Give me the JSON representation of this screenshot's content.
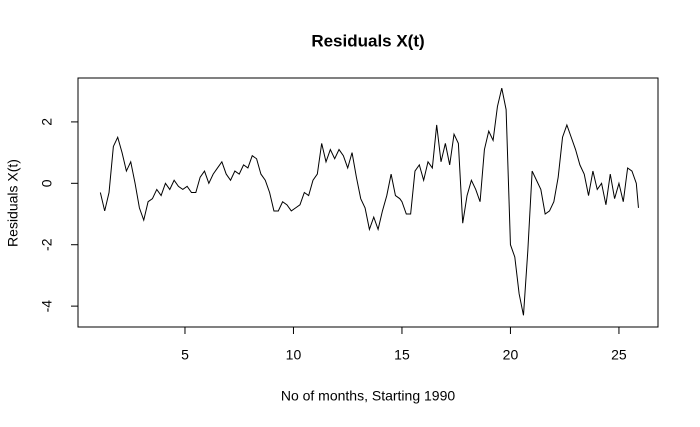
{
  "chart_data": {
    "type": "line",
    "title": "Residuals X(t)",
    "x_label": "No of months, Starting 1990",
    "y_label": "Residuals X(t)",
    "x": [
      1.1,
      1.3,
      1.5,
      1.7,
      1.9,
      2.1,
      2.3,
      2.5,
      2.7,
      2.9,
      3.1,
      3.3,
      3.5,
      3.7,
      3.9,
      4.1,
      4.3,
      4.5,
      4.7,
      4.9,
      5.1,
      5.3,
      5.5,
      5.7,
      5.9,
      6.1,
      6.3,
      6.5,
      6.7,
      6.9,
      7.1,
      7.3,
      7.5,
      7.7,
      7.9,
      8.1,
      8.3,
      8.5,
      8.7,
      8.9,
      9.1,
      9.3,
      9.5,
      9.7,
      9.9,
      10.1,
      10.3,
      10.5,
      10.7,
      10.9,
      11.1,
      11.3,
      11.5,
      11.7,
      11.9,
      12.1,
      12.3,
      12.5,
      12.7,
      12.9,
      13.1,
      13.3,
      13.5,
      13.7,
      13.9,
      14.1,
      14.3,
      14.5,
      14.7,
      14.9,
      15.0,
      15.2,
      15.4,
      15.6,
      15.8,
      16.0,
      16.2,
      16.4,
      16.6,
      16.8,
      17.0,
      17.2,
      17.4,
      17.6,
      17.8,
      18.0,
      18.2,
      18.4,
      18.6,
      18.8,
      19.0,
      19.2,
      19.4,
      19.6,
      19.8,
      20.0,
      20.2,
      20.4,
      20.6,
      20.8,
      21.0,
      21.2,
      21.4,
      21.6,
      21.8,
      22.0,
      22.2,
      22.4,
      22.6,
      22.8,
      23.0,
      23.2,
      23.4,
      23.6,
      23.8,
      24.0,
      24.2,
      24.4,
      24.6,
      24.8,
      25.0,
      25.2,
      25.4,
      25.6,
      25.8,
      25.9
    ],
    "series": [
      {
        "name": "Residuals",
        "color": "#000000",
        "values": [
          -0.3,
          -0.9,
          -0.3,
          1.2,
          1.5,
          1.0,
          0.4,
          0.7,
          0,
          -0.8,
          -1.2,
          -0.6,
          -0.5,
          -0.2,
          -0.4,
          0,
          -0.2,
          0.1,
          -0.1,
          -0.2,
          -0.1,
          -0.3,
          -0.3,
          0.2,
          0.4,
          0,
          0.3,
          0.5,
          0.7,
          0.3,
          0.1,
          0.4,
          0.3,
          0.6,
          0.5,
          0.9,
          0.8,
          0.3,
          0.1,
          -0.3,
          -0.9,
          -0.9,
          -0.6,
          -0.7,
          -0.9,
          -0.8,
          -0.7,
          -0.3,
          -0.4,
          0.1,
          0.3,
          1.3,
          0.7,
          1.1,
          0.8,
          1.1,
          0.9,
          0.5,
          1.0,
          0.2,
          -0.5,
          -0.8,
          -1.5,
          -1.1,
          -1.5,
          -0.9,
          -0.4,
          0.3,
          -0.4,
          -0.5,
          -0.6,
          -1.0,
          -1.0,
          0.4,
          0.6,
          0.1,
          0.7,
          0.5,
          1.9,
          0.7,
          1.3,
          0.6,
          1.6,
          1.3,
          -1.3,
          -0.4,
          0.1,
          -0.2,
          -0.6,
          1.1,
          1.7,
          1.4,
          2.5,
          3.1,
          2.4,
          -2.0,
          -2.4,
          -3.6,
          -4.3,
          -2.2,
          0.4,
          0.1,
          -0.2,
          -1.0,
          -0.9,
          -0.6,
          0.2,
          1.5,
          1.9,
          1.5,
          1.1,
          0.6,
          0.3,
          -0.4,
          0.4,
          -0.2,
          0,
          -0.7,
          0.3,
          -0.5,
          0,
          -0.6,
          0.5,
          0.4,
          0,
          -0.8
        ]
      }
    ],
    "xlim": [
      0.07,
      26.8
    ],
    "ylim": [
      -4.68,
      3.43
    ],
    "xticks": [
      5,
      10,
      15,
      20,
      25
    ],
    "yticks": [
      -4,
      -2,
      0,
      2
    ]
  }
}
